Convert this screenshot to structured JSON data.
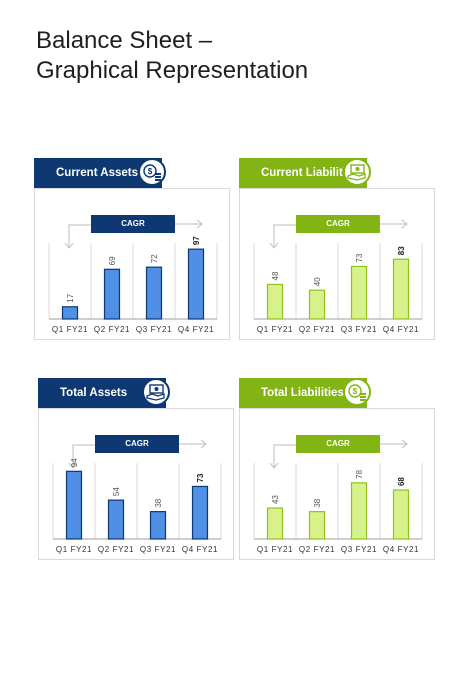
{
  "page": {
    "title_line1": "Balance Sheet –",
    "title_line2": "Graphical Representation"
  },
  "colors": {
    "navy": "#0e3872",
    "green": "#82b414",
    "bar_blue": "#4f8fe6",
    "bar_green": "#d7f28a",
    "bar_green_stroke": "#8fc21a",
    "bar_blue_stroke": "#0e3872",
    "grid": "#cfcfcf"
  },
  "panels": [
    {
      "title": "Current Assets",
      "theme": "blue",
      "icon": "coins-dollar-icon",
      "cagr_label": "CAGR",
      "chart_data": {
        "type": "bar",
        "categories": [
          "Q1 FY21",
          "Q2 FY21",
          "Q3 FY21",
          "Q4 FY21"
        ],
        "values": [
          17,
          69,
          72,
          97
        ],
        "ylim": [
          0,
          100
        ],
        "grid": true
      }
    },
    {
      "title": "Current Liabilities",
      "theme": "green",
      "icon": "hand-money-icon",
      "cagr_label": "CAGR",
      "chart_data": {
        "type": "bar",
        "categories": [
          "Q1 FY21",
          "Q2 FY21",
          "Q3 FY21",
          "Q4 FY21"
        ],
        "values": [
          48,
          40,
          73,
          83
        ],
        "ylim": [
          0,
          100
        ],
        "grid": true
      }
    },
    {
      "title": "Total Assets",
      "theme": "blue",
      "icon": "hand-money-icon",
      "cagr_label": "CAGR",
      "chart_data": {
        "type": "bar",
        "categories": [
          "Q1 FY21",
          "Q2 FY21",
          "Q3 FY21",
          "Q4 FY21"
        ],
        "values": [
          94,
          54,
          38,
          73
        ],
        "ylim": [
          0,
          100
        ],
        "grid": true
      }
    },
    {
      "title": "Total Liabilities",
      "theme": "green",
      "icon": "coins-dollar-icon",
      "cagr_label": "CAGR",
      "chart_data": {
        "type": "bar",
        "categories": [
          "Q1 FY21",
          "Q2 FY21",
          "Q3 FY21",
          "Q4 FY21"
        ],
        "values": [
          43,
          38,
          78,
          68
        ],
        "ylim": [
          0,
          100
        ],
        "grid": true
      }
    }
  ]
}
